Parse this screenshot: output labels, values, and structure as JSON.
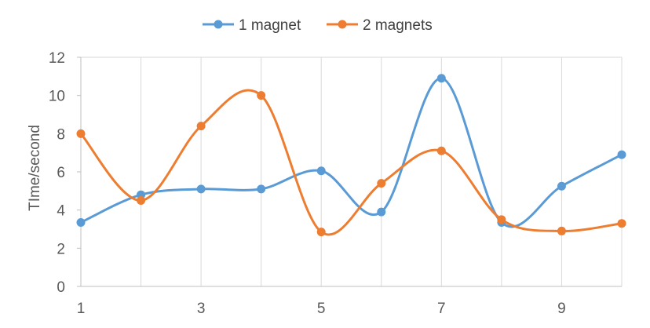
{
  "chart_data": {
    "type": "line",
    "title": "",
    "xlabel": "",
    "ylabel": "TIme/second",
    "x": [
      1,
      2,
      3,
      4,
      5,
      6,
      7,
      8,
      9,
      10
    ],
    "x_tick_labels": [
      "1",
      "3",
      "5",
      "7",
      "9"
    ],
    "y_tick_labels": [
      "0",
      "2",
      "4",
      "6",
      "8",
      "10",
      "12"
    ],
    "ylim": [
      0,
      12
    ],
    "xlim": [
      1,
      10
    ],
    "grid": "vertical",
    "legend_position": "top",
    "smooth": true,
    "series": [
      {
        "name": "1 magnet",
        "color": "#5b9bd5",
        "values": [
          3.35,
          4.8,
          5.1,
          5.1,
          6.05,
          3.9,
          10.9,
          3.35,
          5.25,
          6.9
        ]
      },
      {
        "name": "2 magnets",
        "color": "#ed7d31",
        "values": [
          8.0,
          4.5,
          8.4,
          10.0,
          2.85,
          5.4,
          7.1,
          3.5,
          2.9,
          3.3
        ]
      }
    ]
  }
}
